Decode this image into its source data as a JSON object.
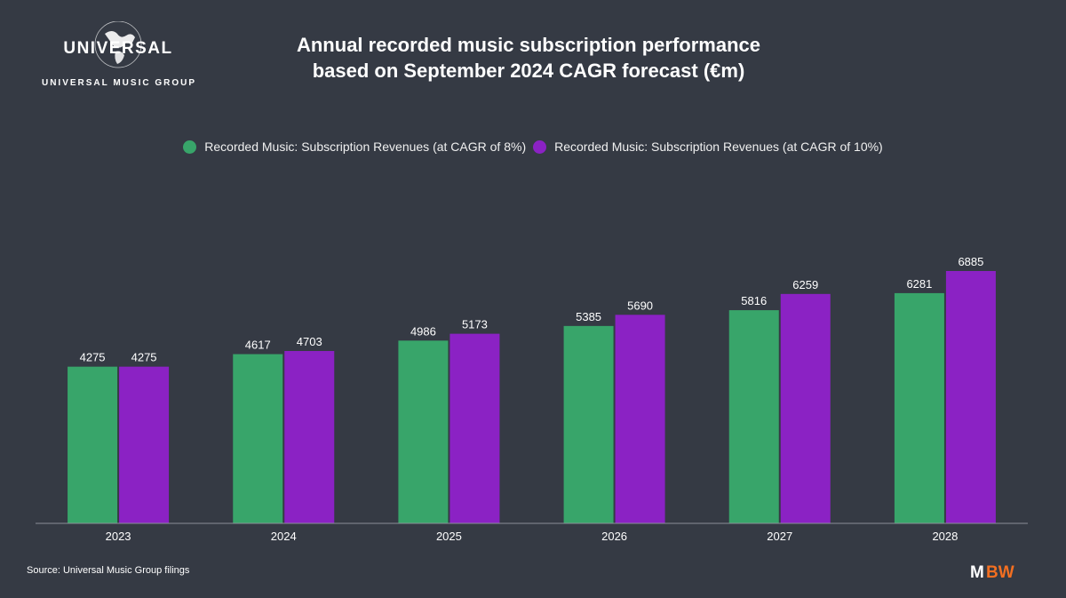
{
  "brand": {
    "logo_word": "UNIVERSAL",
    "logo_subtitle": "UNIVERSAL MUSIC GROUP",
    "watermark": "MBW",
    "watermark_colors": [
      "#ffffff",
      "#f36f21"
    ]
  },
  "title_lines": [
    "Annual recorded music subscription performance",
    "based on September 2024 CAGR forecast (€m)"
  ],
  "source": "Source: Universal Music Group filings",
  "chart_data": {
    "type": "bar",
    "title": "Annual recorded music subscription performance based on September 2024 CAGR forecast (€m)",
    "categories": [
      "2023",
      "2024",
      "2025",
      "2026",
      "2027",
      "2028"
    ],
    "series": [
      {
        "name": "Recorded Music: Subscription Revenues (at CAGR of 8%)",
        "color": "#38a56a",
        "values": [
          4275,
          4617,
          4986,
          5385,
          5816,
          6281
        ]
      },
      {
        "name": "Recorded Music: Subscription Revenues (at CAGR of 10%)",
        "color": "#8b22c4",
        "values": [
          4275,
          4703,
          5173,
          5690,
          6259,
          6885
        ]
      }
    ],
    "ylim": [
      0,
      6885
    ],
    "grid": false,
    "legend_position": "top",
    "data_labels": true
  }
}
